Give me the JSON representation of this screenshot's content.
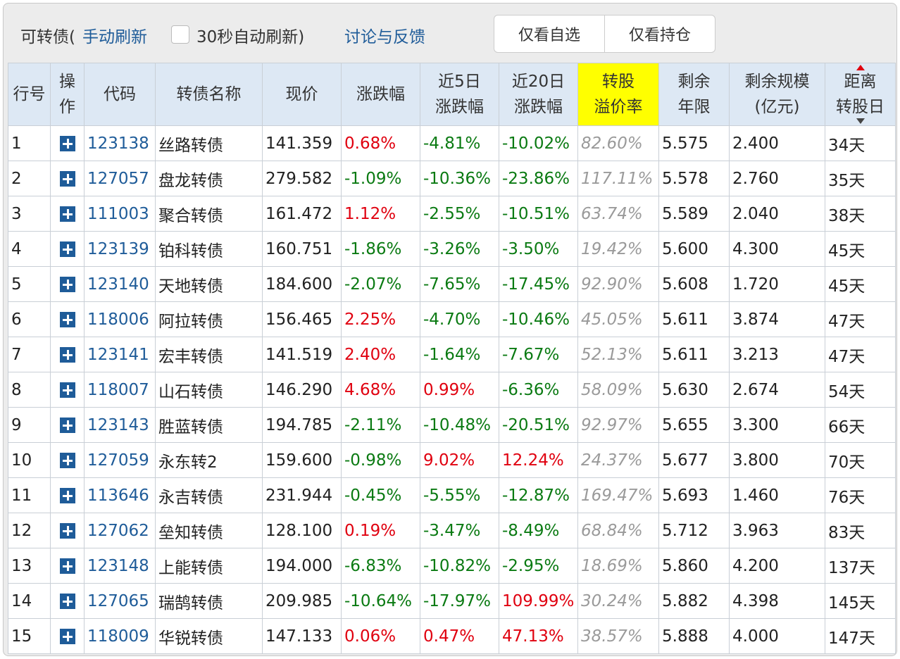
{
  "toolbar": {
    "title": "可转债(",
    "manual_refresh": "手动刷新",
    "auto_refresh": "30秒自动刷新)",
    "feedback": "讨论与反馈",
    "buttons": [
      "仅看自选",
      "仅看持仓"
    ]
  },
  "table": {
    "header": [
      "行号",
      "操\n作",
      "代码",
      "转债名称",
      "现价",
      "涨跌幅",
      "近5日\n涨跌幅",
      "近20日\n涨跌幅",
      "转股\n溢价率",
      "剩余\n年限",
      "剩余规模\n(亿元)",
      "距离\n转股日"
    ],
    "rows": [
      [
        "1",
        "123138",
        "丝路转债",
        "141.359",
        "0.68%",
        "-4.81%",
        "-10.02%",
        "82.60%",
        "5.575",
        "2.400",
        "34天"
      ],
      [
        "2",
        "127057",
        "盘龙转债",
        "279.582",
        "-1.09%",
        "-10.36%",
        "-23.86%",
        "117.11%",
        "5.578",
        "2.760",
        "35天"
      ],
      [
        "3",
        "111003",
        "聚合转债",
        "161.472",
        "1.12%",
        "-2.55%",
        "-10.51%",
        "63.74%",
        "5.589",
        "2.040",
        "38天"
      ],
      [
        "4",
        "123139",
        "铂科转债",
        "160.751",
        "-1.86%",
        "-3.26%",
        "-3.50%",
        "19.42%",
        "5.600",
        "4.300",
        "45天"
      ],
      [
        "5",
        "123140",
        "天地转债",
        "184.600",
        "-2.07%",
        "-7.65%",
        "-17.45%",
        "92.90%",
        "5.608",
        "1.720",
        "45天"
      ],
      [
        "6",
        "118006",
        "阿拉转债",
        "156.465",
        "2.25%",
        "-4.70%",
        "-10.46%",
        "45.05%",
        "5.611",
        "3.874",
        "47天"
      ],
      [
        "7",
        "123141",
        "宏丰转债",
        "141.519",
        "2.40%",
        "-1.64%",
        "-7.67%",
        "52.13%",
        "5.611",
        "3.213",
        "47天"
      ],
      [
        "8",
        "118007",
        "山石转债",
        "146.290",
        "4.68%",
        "0.99%",
        "-6.36%",
        "58.09%",
        "5.630",
        "2.674",
        "54天"
      ],
      [
        "9",
        "123143",
        "胜蓝转债",
        "194.785",
        "-2.11%",
        "-10.48%",
        "-20.51%",
        "92.97%",
        "5.655",
        "3.300",
        "66天"
      ],
      [
        "10",
        "127059",
        "永东转2",
        "159.600",
        "-0.98%",
        "9.02%",
        "12.24%",
        "24.37%",
        "5.677",
        "3.800",
        "70天"
      ],
      [
        "11",
        "113646",
        "永吉转债",
        "231.944",
        "-0.45%",
        "-5.55%",
        "-12.87%",
        "169.47%",
        "5.693",
        "1.460",
        "76天"
      ],
      [
        "12",
        "127062",
        "垒知转债",
        "128.100",
        "0.19%",
        "-3.47%",
        "-8.49%",
        "68.84%",
        "5.712",
        "3.963",
        "83天"
      ],
      [
        "13",
        "123148",
        "上能转债",
        "194.000",
        "-6.83%",
        "-10.82%",
        "-2.95%",
        "18.69%",
        "5.860",
        "4.200",
        "137天"
      ],
      [
        "14",
        "127065",
        "瑞鹄转债",
        "209.985",
        "-10.64%",
        "-17.97%",
        "109.99%",
        "30.24%",
        "5.882",
        "4.398",
        "145天"
      ],
      [
        "15",
        "118009",
        "华锐转债",
        "147.133",
        "0.06%",
        "0.47%",
        "47.13%",
        "38.57%",
        "5.888",
        "4.000",
        "147天"
      ]
    ]
  }
}
